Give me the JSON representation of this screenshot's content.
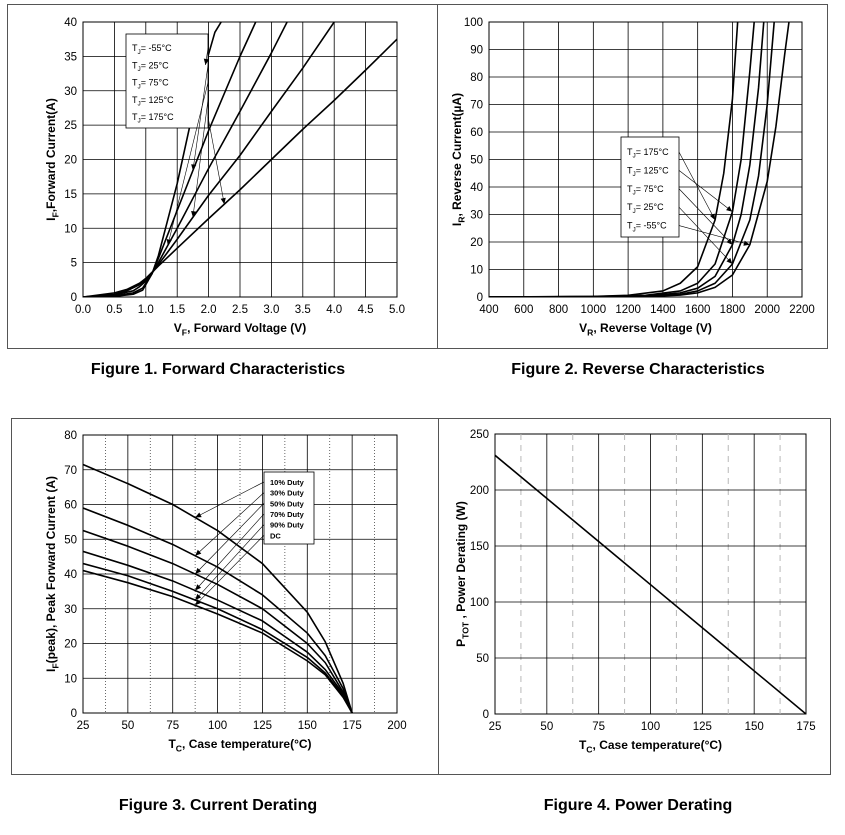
{
  "captions": {
    "fig1": "Figure 1. Forward Characteristics",
    "fig2": "Figure 2. Reverse Characteristics",
    "fig3": "Figure 3. Current Derating",
    "fig4": "Figure 4. Power Derating"
  },
  "chart_data": [
    {
      "id": "fig1",
      "type": "line",
      "title": "Figure 1. Forward Characteristics",
      "xlabel": "VF, Forward Voltage (V)",
      "xlabel_main": "V",
      "xlabel_sub": "F",
      "xlabel_rest": ", Forward Voltage (V)",
      "ylabel": "IF,Forward Current(A)",
      "ylabel_main": "I",
      "ylabel_sub": "F",
      "ylabel_rest": ",Forward Current(A)",
      "xlim": [
        0,
        5
      ],
      "ylim": [
        0,
        40
      ],
      "xticks": [
        "0.0",
        "0.5",
        "1.0",
        "1.5",
        "2.0",
        "2.5",
        "3.0",
        "3.5",
        "4.0",
        "4.5",
        "5.0"
      ],
      "yticks": [
        "0",
        "5",
        "10",
        "15",
        "20",
        "25",
        "30",
        "35",
        "40"
      ],
      "grid": true,
      "legend_position": "top-left",
      "series": [
        {
          "name": "TJ= -55°C",
          "label": "T",
          "sub": "J",
          "rest": "= -55°C",
          "x": [
            0.0,
            0.5,
            0.8,
            0.95,
            1.0,
            1.05,
            1.1,
            1.2,
            1.5,
            1.8,
            2.1,
            2.2
          ],
          "y": [
            0,
            0.1,
            0.4,
            1.0,
            1.8,
            2.6,
            3.4,
            6.0,
            16.5,
            29.0,
            38.5,
            40
          ]
        },
        {
          "name": "TJ= 25°C",
          "label": "T",
          "sub": "J",
          "rest": "= 25°C",
          "x": [
            0.0,
            0.5,
            0.8,
            0.95,
            1.0,
            1.05,
            1.1,
            1.2,
            1.5,
            2.0,
            2.5,
            2.75
          ],
          "y": [
            0,
            0.15,
            0.6,
            1.3,
            2.0,
            2.7,
            3.4,
            5.6,
            12.6,
            24.2,
            35.0,
            40
          ]
        },
        {
          "name": "TJ= 75°C",
          "label": "T",
          "sub": "J",
          "rest": "= 75°C",
          "x": [
            0.0,
            0.5,
            0.8,
            0.9,
            1.0,
            1.05,
            1.1,
            1.2,
            1.5,
            2.0,
            2.5,
            3.0,
            3.25
          ],
          "y": [
            0,
            0.3,
            0.9,
            1.5,
            2.3,
            2.9,
            3.5,
            5.0,
            10.0,
            18.7,
            27.0,
            35.5,
            40
          ]
        },
        {
          "name": "TJ= 125°C",
          "label": "T",
          "sub": "J",
          "rest": "= 125°C",
          "x": [
            0.0,
            0.5,
            0.7,
            0.9,
            1.0,
            1.1,
            1.2,
            1.5,
            2.0,
            2.5,
            3.0,
            3.5,
            4.0
          ],
          "y": [
            0,
            0.4,
            0.9,
            1.8,
            2.5,
            3.5,
            4.7,
            8.4,
            14.8,
            20.6,
            27.0,
            33.3,
            40
          ]
        },
        {
          "name": "TJ= 175°C",
          "label": "T",
          "sub": "J",
          "rest": "= 175°C",
          "x": [
            0.0,
            0.5,
            0.7,
            0.9,
            1.0,
            1.1,
            1.2,
            1.5,
            2.0,
            2.5,
            3.0,
            3.5,
            4.0,
            4.5,
            5.0
          ],
          "y": [
            0,
            0.6,
            1.1,
            2.0,
            2.7,
            3.6,
            4.5,
            7.1,
            11.4,
            15.6,
            20.0,
            24.4,
            28.6,
            33.0,
            37.5
          ]
        }
      ]
    },
    {
      "id": "fig2",
      "type": "line",
      "title": "Figure 2. Reverse Characteristics",
      "xlabel": "VR, Reverse Voltage (V)",
      "xlabel_main": "V",
      "xlabel_sub": "R",
      "xlabel_rest": ", Reverse Voltage (V)",
      "ylabel": "IR, Reverse Current(µA)",
      "ylabel_main": "I",
      "ylabel_sub": "R",
      "ylabel_rest": ", Reverse Current(µA)",
      "xlim": [
        400,
        2200
      ],
      "ylim": [
        0,
        100
      ],
      "xticks": [
        "400",
        "600",
        "800",
        "1000",
        "1200",
        "1400",
        "1600",
        "1800",
        "2000",
        "2200"
      ],
      "yticks": [
        "0",
        "10",
        "20",
        "30",
        "40",
        "50",
        "60",
        "70",
        "80",
        "90",
        "100"
      ],
      "grid": true,
      "legend_position": "center-left",
      "series": [
        {
          "name": "TJ= 175°C",
          "label": "T",
          "sub": "J",
          "rest": "= 175°C",
          "x": [
            400,
            1000,
            1200,
            1400,
            1500,
            1600,
            1700,
            1750,
            1800,
            1830
          ],
          "y": [
            0,
            0.2,
            0.6,
            2.2,
            5.0,
            11.0,
            28.0,
            45.0,
            72.0,
            100
          ]
        },
        {
          "name": "TJ= 125°C",
          "label": "T",
          "sub": "J",
          "rest": "= 125°C",
          "x": [
            400,
            1000,
            1300,
            1500,
            1600,
            1700,
            1800,
            1850,
            1900,
            1925
          ],
          "y": [
            0,
            0.15,
            0.6,
            2.2,
            5.0,
            12.0,
            31.0,
            50.0,
            82.0,
            100
          ]
        },
        {
          "name": "TJ= 75°C",
          "label": "T",
          "sub": "J",
          "rest": "= 75°C",
          "x": [
            400,
            1000,
            1300,
            1500,
            1600,
            1700,
            1800,
            1850,
            1900,
            1950,
            1980
          ],
          "y": [
            0,
            0.1,
            0.4,
            1.5,
            3.2,
            7.5,
            19.0,
            30.0,
            48.0,
            76.0,
            100
          ]
        },
        {
          "name": "TJ= 25°C",
          "label": "T",
          "sub": "J",
          "rest": "= 25°C",
          "x": [
            400,
            1000,
            1300,
            1500,
            1600,
            1700,
            1800,
            1900,
            1950,
            2000,
            2040
          ],
          "y": [
            0,
            0.1,
            0.3,
            1.0,
            2.2,
            5.0,
            12.0,
            28.0,
            44.0,
            70.0,
            100
          ]
        },
        {
          "name": "TJ= -55°C",
          "label": "T",
          "sub": "J",
          "rest": "= -55°C",
          "x": [
            400,
            1000,
            1300,
            1500,
            1600,
            1700,
            1800,
            1900,
            2000,
            2050,
            2100,
            2125
          ],
          "y": [
            0,
            0.05,
            0.2,
            0.7,
            1.5,
            3.5,
            8.0,
            19.0,
            42.0,
            62.0,
            88.0,
            100
          ]
        }
      ]
    },
    {
      "id": "fig3",
      "type": "line",
      "title": "Figure 3. Current Derating",
      "xlabel": "TC, Case temperature(°C)",
      "xlabel_main": "T",
      "xlabel_sub": "C",
      "xlabel_rest": ", Case temperature(°C)",
      "ylabel": "IF(peak), Peak Forward Current (A)",
      "ylabel_main": "I",
      "ylabel_sub": "F",
      "ylabel_rest": "(peak), Peak Forward Current (A)",
      "xlim": [
        25,
        200
      ],
      "ylim": [
        0,
        80
      ],
      "xticks": [
        "25",
        "50",
        "75",
        "100",
        "125",
        "150",
        "175",
        "200"
      ],
      "yticks": [
        "0",
        "10",
        "20",
        "30",
        "40",
        "50",
        "60",
        "70",
        "80"
      ],
      "grid": true,
      "legend_position": "top-right",
      "series": [
        {
          "name": "10% Duty",
          "x": [
            25,
            50,
            75,
            100,
            125,
            150,
            160,
            170,
            175
          ],
          "y": [
            71.5,
            66.0,
            60.0,
            52.5,
            43.0,
            29.0,
            20.5,
            8.5,
            0
          ]
        },
        {
          "name": "30% Duty",
          "x": [
            25,
            50,
            75,
            100,
            125,
            150,
            160,
            170,
            175
          ],
          "y": [
            59.0,
            54.0,
            48.5,
            42.0,
            34.0,
            23.0,
            16.5,
            7.0,
            0
          ]
        },
        {
          "name": "50% Duty",
          "x": [
            25,
            50,
            75,
            100,
            125,
            150,
            160,
            170,
            175
          ],
          "y": [
            52.5,
            48.0,
            43.0,
            37.0,
            30.0,
            20.0,
            14.5,
            6.0,
            0
          ]
        },
        {
          "name": "70% Duty",
          "x": [
            25,
            50,
            75,
            100,
            125,
            150,
            160,
            170,
            175
          ],
          "y": [
            46.5,
            42.5,
            38.0,
            32.5,
            26.5,
            17.5,
            12.5,
            5.5,
            0
          ]
        },
        {
          "name": "90% Duty",
          "x": [
            25,
            50,
            75,
            100,
            125,
            150,
            160,
            170,
            175
          ],
          "y": [
            43.0,
            39.5,
            35.0,
            30.0,
            24.0,
            16.0,
            11.5,
            5.0,
            0
          ]
        },
        {
          "name": "DC",
          "x": [
            25,
            50,
            75,
            100,
            125,
            150,
            160,
            170,
            175
          ],
          "y": [
            41.0,
            37.5,
            33.5,
            28.5,
            23.0,
            15.0,
            11.0,
            4.5,
            0
          ]
        }
      ]
    },
    {
      "id": "fig4",
      "type": "line",
      "title": "Figure 4. Power Derating",
      "xlabel": "TC, Case temperature(°C)",
      "xlabel_main": "T",
      "xlabel_sub": "C",
      "xlabel_rest": ", Case temperature(°C)",
      "ylabel": "PTOT , Power Derating (W)",
      "ylabel_main": "P",
      "ylabel_sub": "TOT",
      "ylabel_rest": " , Power Derating (W)",
      "xlim": [
        25,
        175
      ],
      "ylim": [
        0,
        250
      ],
      "xticks": [
        "25",
        "50",
        "75",
        "100",
        "125",
        "150",
        "175"
      ],
      "yticks": [
        "0",
        "50",
        "100",
        "150",
        "200",
        "250"
      ],
      "grid": true,
      "legend_position": "none",
      "series": [
        {
          "x": [
            25,
            175
          ],
          "y": [
            231,
            0
          ]
        }
      ]
    }
  ]
}
